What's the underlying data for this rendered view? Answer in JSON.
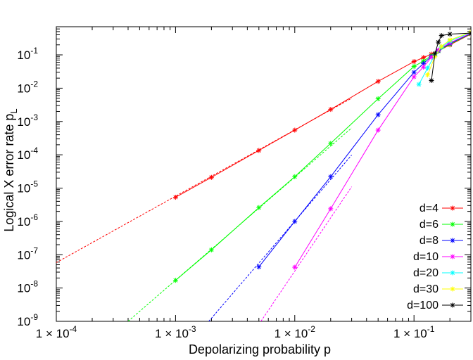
{
  "chart_data": {
    "type": "line",
    "title": "",
    "xlabel": "Depolarizing probability p",
    "ylabel": "Logical X error rate p",
    "ylabel_subscript": "L",
    "xscale": "log",
    "yscale": "log",
    "xlim": [
      0.0001,
      0.3
    ],
    "ylim": [
      1e-09,
      0.7
    ],
    "grid": false,
    "legend_position": "bottom-right",
    "x_ticks": [
      {
        "value": 0.0001,
        "mantissa": "1",
        "times": "×",
        "base": "10",
        "exponent": "-4"
      },
      {
        "value": 0.001,
        "mantissa": "1",
        "times": "×",
        "base": "10",
        "exponent": "-3"
      },
      {
        "value": 0.01,
        "mantissa": "1",
        "times": "×",
        "base": "10",
        "exponent": "-2"
      },
      {
        "value": 0.1,
        "mantissa": "1",
        "times": "×",
        "base": "10",
        "exponent": "-1"
      }
    ],
    "y_ticks": [
      {
        "value": 1e-09,
        "base": "10",
        "exponent": "-9"
      },
      {
        "value": 1e-08,
        "base": "10",
        "exponent": "-8"
      },
      {
        "value": 1e-07,
        "base": "10",
        "exponent": "-7"
      },
      {
        "value": 1e-06,
        "base": "10",
        "exponent": "-6"
      },
      {
        "value": 1e-05,
        "base": "10",
        "exponent": "-5"
      },
      {
        "value": 0.0001,
        "base": "10",
        "exponent": "-4"
      },
      {
        "value": 0.001,
        "base": "10",
        "exponent": "-3"
      },
      {
        "value": 0.01,
        "base": "10",
        "exponent": "-2"
      },
      {
        "value": 0.1,
        "base": "10",
        "exponent": "-1"
      }
    ],
    "series": [
      {
        "name": "d=4",
        "color": "#ff0000",
        "x": [
          0.001,
          0.002,
          0.005,
          0.01,
          0.02,
          0.05,
          0.1,
          0.12,
          0.14,
          0.16,
          0.2,
          0.3
        ],
        "y": [
          5.3e-06,
          2.1e-05,
          0.000135,
          0.00055,
          0.0023,
          0.016,
          0.063,
          0.083,
          0.105,
          0.13,
          0.2,
          0.42
        ],
        "fit": {
          "x": [
            0.0001,
            0.03
          ],
          "y": [
            5.8e-08,
            0.005
          ]
        }
      },
      {
        "name": "d=6",
        "color": "#00ff00",
        "x": [
          0.001,
          0.002,
          0.005,
          0.01,
          0.02,
          0.05,
          0.1,
          0.12,
          0.14,
          0.16,
          0.2,
          0.3
        ],
        "y": [
          1.7e-08,
          1.4e-07,
          2.6e-06,
          2.2e-05,
          0.00022,
          0.0048,
          0.045,
          0.065,
          0.095,
          0.13,
          0.21,
          0.43
        ],
        "fit": {
          "x": [
            0.0004,
            0.03
          ],
          "y": [
            1e-09,
            0.00064
          ]
        }
      },
      {
        "name": "d=8",
        "color": "#0000ff",
        "x": [
          0.005,
          0.01,
          0.02,
          0.05,
          0.1,
          0.12,
          0.14,
          0.16,
          0.2,
          0.3
        ],
        "y": [
          4.3e-08,
          1e-06,
          2.2e-05,
          0.0016,
          0.03,
          0.055,
          0.09,
          0.135,
          0.22,
          0.44
        ],
        "fit": {
          "x": [
            0.0019,
            0.03
          ],
          "y": [
            1e-09,
            9.8e-05
          ]
        }
      },
      {
        "name": "d=10",
        "color": "#ff00ff",
        "x": [
          0.01,
          0.02,
          0.05,
          0.1,
          0.12,
          0.14,
          0.16,
          0.2,
          0.3
        ],
        "y": [
          4.2e-08,
          2.4e-06,
          0.00055,
          0.022,
          0.043,
          0.085,
          0.14,
          0.23,
          0.45
        ],
        "fit": {
          "x": [
            0.0052,
            0.03
          ],
          "y": [
            1e-09,
            1.1e-05
          ]
        }
      },
      {
        "name": "d=20",
        "color": "#00ffff",
        "x": [
          0.11,
          0.13,
          0.15,
          0.17,
          0.2,
          0.3
        ],
        "y": [
          0.013,
          0.04,
          0.1,
          0.17,
          0.26,
          0.47
        ],
        "fit": null
      },
      {
        "name": "d=30",
        "color": "#ffff00",
        "x": [
          0.13,
          0.15,
          0.17,
          0.2,
          0.3
        ],
        "y": [
          0.025,
          0.09,
          0.18,
          0.28,
          0.48
        ],
        "fit": null
      },
      {
        "name": "d=100",
        "color": "#000000",
        "x": [
          0.14,
          0.15,
          0.16,
          0.17,
          0.2,
          0.3
        ],
        "y": [
          0.017,
          0.11,
          0.24,
          0.38,
          0.42,
          0.45
        ],
        "fit": null
      }
    ]
  }
}
